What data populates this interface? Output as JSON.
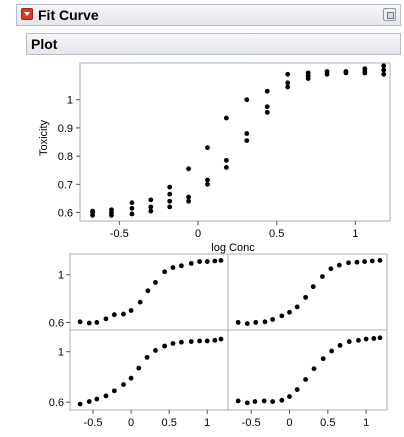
{
  "report": {
    "title": "Fit Curve"
  },
  "plot_section": {
    "title": "Plot"
  },
  "chart_data": [
    {
      "type": "scatter",
      "xlabel": "log Conc",
      "ylabel": "Toxicity",
      "xlim": [
        -0.75,
        1.22
      ],
      "ylim": [
        0.57,
        1.13
      ],
      "x_ticks": [
        -0.5,
        0,
        0.5,
        1
      ],
      "x_tick_labels": [
        "-0.5",
        "0",
        "0.5",
        "1"
      ],
      "y_ticks": [
        0.6,
        0.7,
        0.8,
        0.9,
        1
      ],
      "y_tick_labels": [
        "0.6",
        "0.7",
        "0.8",
        "0.9",
        "1"
      ],
      "marker_color": "#000000",
      "points": [
        [
          -0.67,
          0.59
        ],
        [
          -0.67,
          0.6
        ],
        [
          -0.67,
          0.605
        ],
        [
          -0.55,
          0.59
        ],
        [
          -0.55,
          0.6
        ],
        [
          -0.55,
          0.61
        ],
        [
          -0.42,
          0.595
        ],
        [
          -0.42,
          0.615
        ],
        [
          -0.42,
          0.635
        ],
        [
          -0.3,
          0.605
        ],
        [
          -0.3,
          0.62
        ],
        [
          -0.3,
          0.645
        ],
        [
          -0.18,
          0.62
        ],
        [
          -0.18,
          0.64
        ],
        [
          -0.18,
          0.665
        ],
        [
          -0.18,
          0.69
        ],
        [
          -0.06,
          0.64
        ],
        [
          -0.06,
          0.655
        ],
        [
          -0.06,
          0.755
        ],
        [
          0.06,
          0.7
        ],
        [
          0.06,
          0.715
        ],
        [
          0.06,
          0.83
        ],
        [
          0.18,
          0.76
        ],
        [
          0.18,
          0.785
        ],
        [
          0.18,
          0.935
        ],
        [
          0.31,
          0.855
        ],
        [
          0.31,
          0.88
        ],
        [
          0.31,
          1.0
        ],
        [
          0.44,
          0.955
        ],
        [
          0.44,
          0.975
        ],
        [
          0.44,
          1.03
        ],
        [
          0.57,
          1.045
        ],
        [
          0.57,
          1.06
        ],
        [
          0.57,
          1.09
        ],
        [
          0.7,
          1.075
        ],
        [
          0.7,
          1.085
        ],
        [
          0.7,
          1.095
        ],
        [
          0.82,
          1.09
        ],
        [
          0.82,
          1.1
        ],
        [
          0.94,
          1.095
        ],
        [
          0.94,
          1.1
        ],
        [
          1.06,
          1.095
        ],
        [
          1.06,
          1.1
        ],
        [
          1.06,
          1.11
        ],
        [
          1.18,
          1.09
        ],
        [
          1.18,
          1.105
        ],
        [
          1.18,
          1.12
        ]
      ]
    },
    {
      "type": "scatter",
      "layout": "2x2 grid",
      "xlim": [
        -0.75,
        1.22
      ],
      "ylim": [
        0.57,
        1.14
      ],
      "x_ticks": [
        -0.5,
        0,
        0.5,
        1
      ],
      "x_tick_labels": [
        "-0.5",
        "0",
        "0.5",
        "1"
      ],
      "y_ticks": [
        0.6,
        1
      ],
      "y_tick_labels": [
        "0.6",
        "1"
      ],
      "marker_color": "#000000",
      "panels": [
        {
          "points": [
            [
              -0.67,
              0.605
            ],
            [
              -0.55,
              0.595
            ],
            [
              -0.45,
              0.6
            ],
            [
              -0.33,
              0.63
            ],
            [
              -0.22,
              0.665
            ],
            [
              -0.1,
              0.67
            ],
            [
              0.0,
              0.7
            ],
            [
              0.12,
              0.77
            ],
            [
              0.22,
              0.865
            ],
            [
              0.32,
              0.935
            ],
            [
              0.44,
              1.025
            ],
            [
              0.55,
              1.06
            ],
            [
              0.66,
              1.075
            ],
            [
              0.79,
              1.095
            ],
            [
              0.9,
              1.11
            ],
            [
              1.0,
              1.11
            ],
            [
              1.1,
              1.115
            ],
            [
              1.18,
              1.12
            ]
          ]
        },
        {
          "points": [
            [
              -0.67,
              0.6
            ],
            [
              -0.55,
              0.59
            ],
            [
              -0.44,
              0.6
            ],
            [
              -0.32,
              0.605
            ],
            [
              -0.22,
              0.625
            ],
            [
              -0.1,
              0.655
            ],
            [
              0.0,
              0.685
            ],
            [
              0.1,
              0.73
            ],
            [
              0.21,
              0.81
            ],
            [
              0.31,
              0.9
            ],
            [
              0.43,
              0.985
            ],
            [
              0.54,
              1.05
            ],
            [
              0.65,
              1.08
            ],
            [
              0.77,
              1.1
            ],
            [
              0.88,
              1.105
            ],
            [
              0.98,
              1.11
            ],
            [
              1.08,
              1.115
            ],
            [
              1.18,
              1.12
            ]
          ]
        },
        {
          "points": [
            [
              -0.67,
              0.585
            ],
            [
              -0.55,
              0.605
            ],
            [
              -0.45,
              0.625
            ],
            [
              -0.33,
              0.65
            ],
            [
              -0.22,
              0.69
            ],
            [
              -0.1,
              0.74
            ],
            [
              0.0,
              0.79
            ],
            [
              0.1,
              0.87
            ],
            [
              0.21,
              0.955
            ],
            [
              0.32,
              1.01
            ],
            [
              0.44,
              1.045
            ],
            [
              0.55,
              1.065
            ],
            [
              0.66,
              1.075
            ],
            [
              0.79,
              1.08
            ],
            [
              0.9,
              1.085
            ],
            [
              1.0,
              1.085
            ],
            [
              1.1,
              1.09
            ],
            [
              1.18,
              1.1
            ]
          ]
        },
        {
          "points": [
            [
              -0.67,
              0.61
            ],
            [
              -0.55,
              0.595
            ],
            [
              -0.45,
              0.605
            ],
            [
              -0.33,
              0.61
            ],
            [
              -0.22,
              0.605
            ],
            [
              -0.1,
              0.615
            ],
            [
              0.0,
              0.645
            ],
            [
              0.1,
              0.7
            ],
            [
              0.21,
              0.78
            ],
            [
              0.32,
              0.865
            ],
            [
              0.44,
              0.945
            ],
            [
              0.55,
              1.005
            ],
            [
              0.66,
              1.05
            ],
            [
              0.78,
              1.08
            ],
            [
              0.9,
              1.09
            ],
            [
              1.0,
              1.1
            ],
            [
              1.1,
              1.105
            ],
            [
              1.18,
              1.11
            ]
          ]
        }
      ]
    }
  ]
}
